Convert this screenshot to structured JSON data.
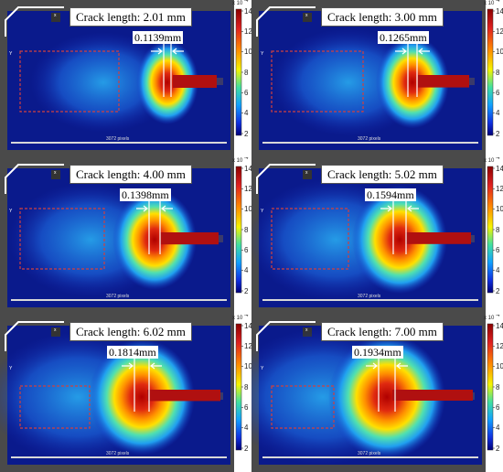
{
  "colorbar": {
    "exponent": "x 10",
    "exponent_power": "-4",
    "ticks": [
      "14",
      "12",
      "10",
      "8",
      "6",
      "4",
      "2"
    ]
  },
  "panels": [
    {
      "title": "Crack length: 2.01 mm",
      "width_label": "0.1139mm",
      "crack_length_mm": 2.01,
      "width_mm": 0.1139,
      "pixels_label": "3072 pixels",
      "x_tag": "x",
      "y_tag": "Y"
    },
    {
      "title": "Crack length: 3.00 mm",
      "width_label": "0.1265mm",
      "crack_length_mm": 3.0,
      "width_mm": 0.1265,
      "pixels_label": "3072 pixels",
      "x_tag": "x",
      "y_tag": "Y"
    },
    {
      "title": "Crack length: 4.00 mm",
      "width_label": "0.1398mm",
      "crack_length_mm": 4.0,
      "width_mm": 0.1398,
      "pixels_label": "3072 pixels",
      "x_tag": "x",
      "y_tag": "Y"
    },
    {
      "title": "Crack length: 5.02 mm",
      "width_label": "0.1594mm",
      "crack_length_mm": 5.02,
      "width_mm": 0.1594,
      "pixels_label": "3072 pixels",
      "x_tag": "x",
      "y_tag": "Y"
    },
    {
      "title": "Crack length: 6.02 mm",
      "width_label": "0.1814mm",
      "crack_length_mm": 6.02,
      "width_mm": 0.1814,
      "pixels_label": "3072 pixels",
      "x_tag": "x",
      "y_tag": "Y"
    },
    {
      "title": "Crack length: 7.00 mm",
      "width_label": "0.1934mm",
      "crack_length_mm": 7.0,
      "width_mm": 0.1934,
      "pixels_label": "3072 pixels",
      "x_tag": "x",
      "y_tag": "Y"
    }
  ],
  "colors": {
    "background_field": "#0a1a8c",
    "hot": "#b01010",
    "box_outline": "#d04040"
  }
}
